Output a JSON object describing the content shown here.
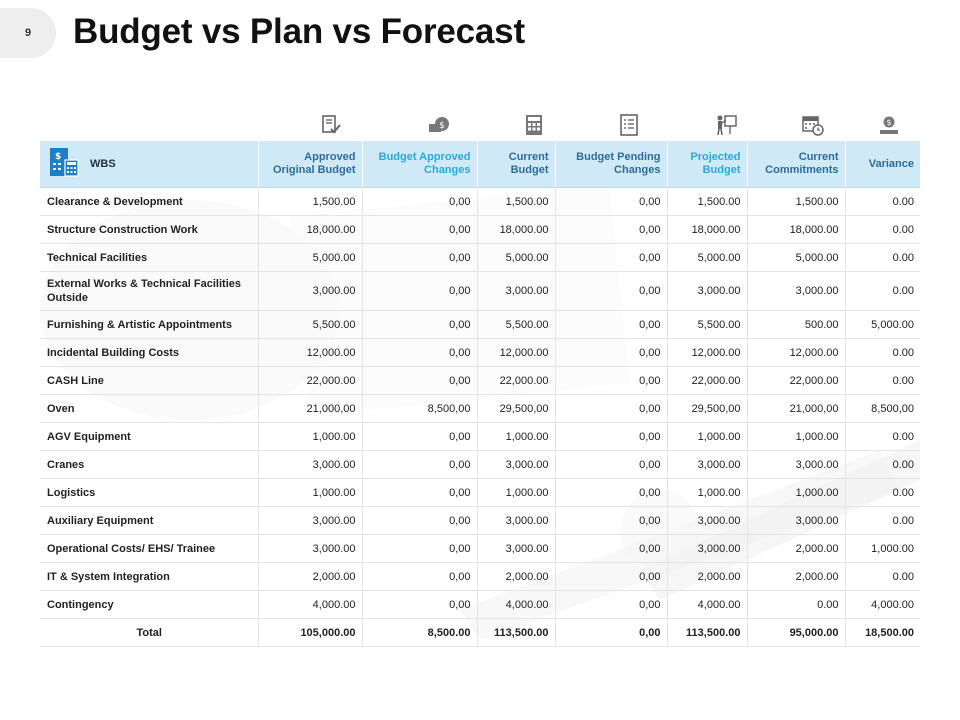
{
  "page": {
    "number": "9",
    "title": "Budget vs Plan vs Forecast"
  },
  "icons": [
    "document-check-icon",
    "money-bag-icon",
    "calculator-icon",
    "checklist-icon",
    "presentation-icon",
    "calendar-clock-icon",
    "money-hand-icon"
  ],
  "table": {
    "headers": {
      "wbs": "WBS",
      "approved": "Approved Original Budget",
      "budget_approved_changes": "Budget Approved Changes",
      "current_budget": "Current Budget",
      "pending_changes": "Budget Pending Changes",
      "projected": "Projected Budget",
      "commitments": "Current Commitments",
      "variance": "Variance"
    },
    "rows": [
      {
        "wbs": "Clearance & Development",
        "approved": "1,500.00",
        "bac": "0,00",
        "current": "1,500.00",
        "pending": "0,00",
        "projected": "1,500.00",
        "commitments": "1,500.00",
        "variance": "0.00"
      },
      {
        "wbs": "Structure Construction Work",
        "approved": "18,000.00",
        "bac": "0,00",
        "current": "18,000.00",
        "pending": "0,00",
        "projected": "18,000.00",
        "commitments": "18,000.00",
        "variance": "0.00"
      },
      {
        "wbs": "Technical Facilities",
        "approved": "5,000.00",
        "bac": "0,00",
        "current": "5,000.00",
        "pending": "0,00",
        "projected": "5,000.00",
        "commitments": "5,000.00",
        "variance": "0.00"
      },
      {
        "wbs": "External Works & Technical Facilities Outside",
        "approved": "3,000.00",
        "bac": "0,00",
        "current": "3,000.00",
        "pending": "0,00",
        "projected": "3,000.00",
        "commitments": "3,000.00",
        "variance": "0.00"
      },
      {
        "wbs": "Furnishing  & Artistic Appointments",
        "approved": "5,500.00",
        "bac": "0,00",
        "current": "5,500.00",
        "pending": "0,00",
        "projected": "5,500.00",
        "commitments": "500.00",
        "variance": "5,000.00"
      },
      {
        "wbs": "Incidental Building  Costs",
        "approved": "12,000.00",
        "bac": "0,00",
        "current": "12,000.00",
        "pending": "0,00",
        "projected": "12,000.00",
        "commitments": "12,000.00",
        "variance": "0.00"
      },
      {
        "wbs": "CASH Line",
        "approved": "22,000.00",
        "bac": "0,00",
        "current": "22,000.00",
        "pending": "0,00",
        "projected": "22,000.00",
        "commitments": "22,000.00",
        "variance": "0.00"
      },
      {
        "wbs": "Oven",
        "approved": "21,000,00",
        "bac": "8,500,00",
        "current": "29,500,00",
        "pending": "0,00",
        "projected": "29,500,00",
        "commitments": "21,000,00",
        "variance": "8,500,00"
      },
      {
        "wbs": "AGV Equipment",
        "approved": "1,000.00",
        "bac": "0,00",
        "current": "1,000.00",
        "pending": "0,00",
        "projected": "1,000.00",
        "commitments": "1,000.00",
        "variance": "0.00"
      },
      {
        "wbs": "Cranes",
        "approved": "3,000.00",
        "bac": "0,00",
        "current": "3,000.00",
        "pending": "0,00",
        "projected": "3,000.00",
        "commitments": "3,000.00",
        "variance": "0.00"
      },
      {
        "wbs": "Logistics",
        "approved": "1,000.00",
        "bac": "0,00",
        "current": "1,000.00",
        "pending": "0,00",
        "projected": "1,000.00",
        "commitments": "1,000.00",
        "variance": "0.00"
      },
      {
        "wbs": "Auxiliary Equipment",
        "approved": "3,000.00",
        "bac": "0,00",
        "current": "3,000.00",
        "pending": "0,00",
        "projected": "3,000.00",
        "commitments": "3,000.00",
        "variance": "0.00"
      },
      {
        "wbs": "Operational Costs/ EHS/ Trainee",
        "approved": "3,000.00",
        "bac": "0,00",
        "current": "3,000.00",
        "pending": "0,00",
        "projected": "3,000.00",
        "commitments": "2,000.00",
        "variance": "1,000.00"
      },
      {
        "wbs": "IT & System Integration",
        "approved": "2,000.00",
        "bac": "0,00",
        "current": "2,000.00",
        "pending": "0,00",
        "projected": "2,000.00",
        "commitments": "2,000.00",
        "variance": "0.00"
      },
      {
        "wbs": "Contingency",
        "approved": "4,000.00",
        "bac": "0,00",
        "current": "4,000.00",
        "pending": "0,00",
        "projected": "4,000.00",
        "commitments": "0.00",
        "variance": "4,000.00"
      }
    ],
    "total": {
      "wbs": "Total",
      "approved": "105,000.00",
      "bac": "8,500.00",
      "current": "113,500.00",
      "pending": "0,00",
      "projected": "113,500.00",
      "commitments": "95,000.00",
      "variance": "18,500.00"
    }
  },
  "colors": {
    "header_bg": "#cfeaf6",
    "header_text": "#2aa9d9",
    "header_text_dark": "#2d6c9a",
    "icon_blue": "#1f7fc4",
    "icon_gray": "#666666"
  }
}
